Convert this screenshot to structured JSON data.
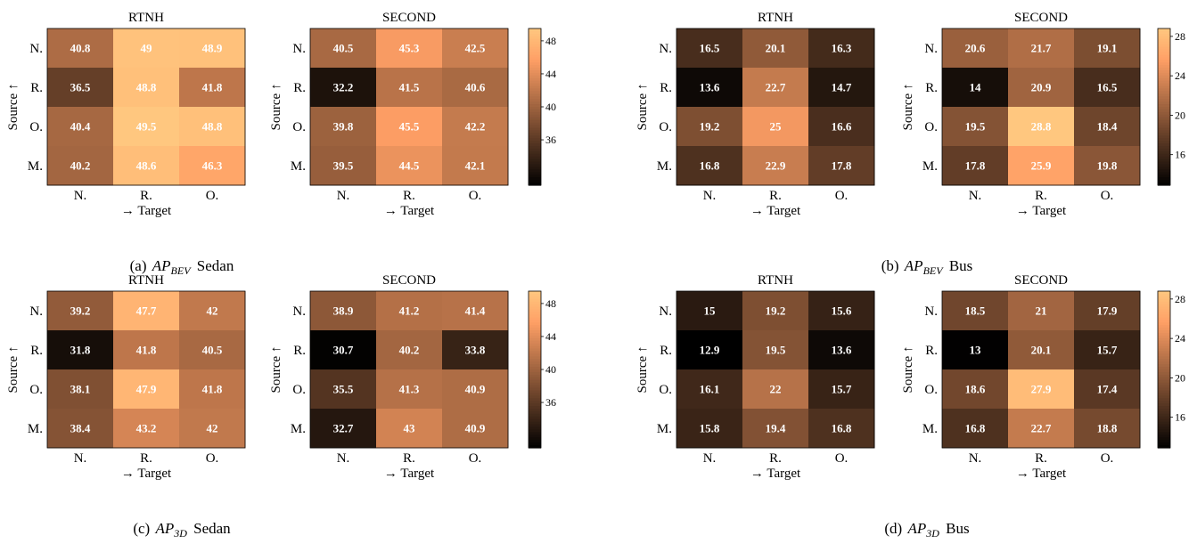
{
  "figure": {
    "row_labels": [
      "N.",
      "R.",
      "O.",
      "M."
    ],
    "col_labels": [
      "N.",
      "R.",
      "O."
    ],
    "ylabel": "Source ↑",
    "xlabel": "→ Target",
    "colormap": "copper",
    "value_color": "#ffffff"
  },
  "panels": [
    {
      "id": "a",
      "caption": {
        "prefix": "(a) ",
        "metric": "AP",
        "subscript": "BEV",
        "suffix": " Sedan"
      },
      "colorbar": {
        "vmin": 30.5,
        "vmax": 49.5,
        "ticks": [
          36,
          40,
          44,
          48
        ]
      }
    },
    {
      "id": "b",
      "caption": {
        "prefix": "(b) ",
        "metric": "AP",
        "subscript": "BEV",
        "suffix": " Bus"
      },
      "colorbar": {
        "vmin": 12.9,
        "vmax": 28.8,
        "ticks": [
          16,
          20,
          24,
          28
        ]
      }
    },
    {
      "id": "c",
      "caption": {
        "prefix": "(c) ",
        "metric": "AP",
        "subscript": "3D",
        "suffix": " Sedan"
      },
      "colorbar": {
        "vmin": 30.5,
        "vmax": 49.5,
        "ticks": [
          36,
          40,
          44,
          48
        ]
      }
    },
    {
      "id": "d",
      "caption": {
        "prefix": "(d) ",
        "metric": "AP",
        "subscript": "3D",
        "suffix": " Bus"
      },
      "colorbar": {
        "vmin": 12.9,
        "vmax": 28.8,
        "ticks": [
          16,
          20,
          24,
          28
        ]
      }
    }
  ],
  "chart_data": [
    {
      "type": "heatmap",
      "panel": "a",
      "title": "RTNH",
      "x": [
        "N.",
        "R.",
        "O."
      ],
      "y": [
        "N.",
        "R.",
        "O.",
        "M."
      ],
      "xlabel": "→ Target",
      "ylabel": "Source ↑",
      "values": [
        [
          40.8,
          49.0,
          48.9
        ],
        [
          36.5,
          48.8,
          41.8
        ],
        [
          40.4,
          49.5,
          48.8
        ],
        [
          40.2,
          48.6,
          46.3
        ]
      ]
    },
    {
      "type": "heatmap",
      "panel": "a",
      "title": "SECOND",
      "x": [
        "N.",
        "R.",
        "O."
      ],
      "y": [
        "N.",
        "R.",
        "O.",
        "M."
      ],
      "xlabel": "→ Target",
      "ylabel": "Source ↑",
      "values": [
        [
          40.5,
          45.3,
          42.5
        ],
        [
          32.2,
          41.5,
          40.6
        ],
        [
          39.8,
          45.5,
          42.2
        ],
        [
          39.5,
          44.5,
          42.1
        ]
      ]
    },
    {
      "type": "heatmap",
      "panel": "b",
      "title": "RTNH",
      "x": [
        "N.",
        "R.",
        "O."
      ],
      "y": [
        "N.",
        "R.",
        "O.",
        "M."
      ],
      "xlabel": "→ Target",
      "ylabel": "Source ↑",
      "values": [
        [
          16.5,
          20.1,
          16.3
        ],
        [
          13.6,
          22.7,
          14.7
        ],
        [
          19.2,
          25.0,
          16.6
        ],
        [
          16.8,
          22.9,
          17.8
        ]
      ]
    },
    {
      "type": "heatmap",
      "panel": "b",
      "title": "SECOND",
      "x": [
        "N.",
        "R.",
        "O."
      ],
      "y": [
        "N.",
        "R.",
        "O.",
        "M."
      ],
      "xlabel": "→ Target",
      "ylabel": "Source ↑",
      "values": [
        [
          20.6,
          21.7,
          19.1
        ],
        [
          14.0,
          20.9,
          16.5
        ],
        [
          19.5,
          28.8,
          18.4
        ],
        [
          17.8,
          25.9,
          19.8
        ]
      ]
    },
    {
      "type": "heatmap",
      "panel": "c",
      "title": "RTNH",
      "x": [
        "N.",
        "R.",
        "O."
      ],
      "y": [
        "N.",
        "R.",
        "O.",
        "M."
      ],
      "xlabel": "→ Target",
      "ylabel": "Source ↑",
      "values": [
        [
          39.2,
          47.7,
          42.0
        ],
        [
          31.8,
          41.8,
          40.5
        ],
        [
          38.1,
          47.9,
          41.8
        ],
        [
          38.4,
          43.2,
          42.0
        ]
      ]
    },
    {
      "type": "heatmap",
      "panel": "c",
      "title": "SECOND",
      "x": [
        "N.",
        "R.",
        "O."
      ],
      "y": [
        "N.",
        "R.",
        "O.",
        "M."
      ],
      "xlabel": "→ Target",
      "ylabel": "Source ↑",
      "values": [
        [
          38.9,
          41.2,
          41.4
        ],
        [
          30.7,
          40.2,
          33.8
        ],
        [
          35.5,
          41.3,
          40.9
        ],
        [
          32.7,
          43.0,
          40.9
        ]
      ]
    },
    {
      "type": "heatmap",
      "panel": "d",
      "title": "RTNH",
      "x": [
        "N.",
        "R.",
        "O."
      ],
      "y": [
        "N.",
        "R.",
        "O.",
        "M."
      ],
      "xlabel": "→ Target",
      "ylabel": "Source ↑",
      "values": [
        [
          15.0,
          19.2,
          15.6
        ],
        [
          12.9,
          19.5,
          13.6
        ],
        [
          16.1,
          22.0,
          15.7
        ],
        [
          15.8,
          19.4,
          16.8
        ]
      ]
    },
    {
      "type": "heatmap",
      "panel": "d",
      "title": "SECOND",
      "x": [
        "N.",
        "R.",
        "O."
      ],
      "y": [
        "N.",
        "R.",
        "O.",
        "M."
      ],
      "xlabel": "→ Target",
      "ylabel": "Source ↑",
      "values": [
        [
          18.5,
          21.0,
          17.9
        ],
        [
          13.0,
          20.1,
          15.7
        ],
        [
          18.6,
          27.9,
          17.4
        ],
        [
          16.8,
          22.7,
          18.8
        ]
      ]
    }
  ]
}
